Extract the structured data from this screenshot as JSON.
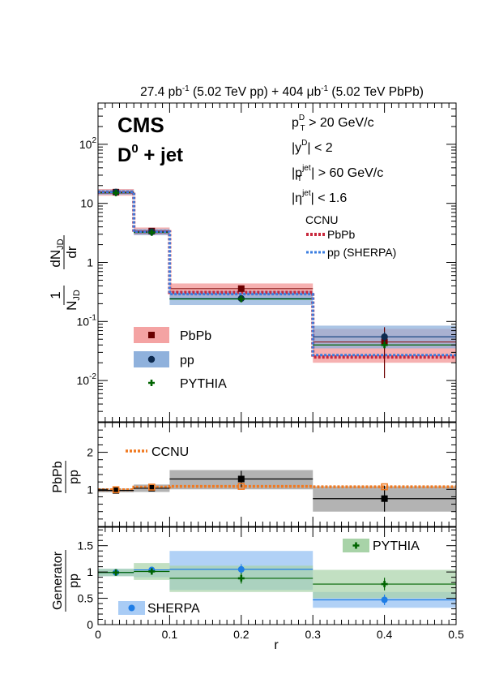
{
  "header": {
    "lumi_pp": "27.4 pb",
    "lumi_pp_exp": "-1",
    "lumi_pp_energy": " (5.02 TeV pp) + 404 ",
    "lumi_pbpb_unit": "μb",
    "lumi_pbpb_exp": "-1",
    "lumi_pbpb_energy": " (5.02 TeV PbPb)"
  },
  "experiment": "CMS",
  "process": {
    "base": "D",
    "sup": "0",
    "rest": " + jet"
  },
  "cuts": [
    {
      "pre": "p",
      "sub": "T",
      "sup": "D",
      "post": " > 20 GeV/c"
    },
    {
      "pre": "|y",
      "sub": "",
      "sup": "D",
      "post": "| < 2"
    },
    {
      "pre": "|p",
      "sub": "T",
      "sup": "jet",
      "post": "| > 60 GeV/c"
    },
    {
      "pre": "|η",
      "sub": "",
      "sup": "jet",
      "post": "| < 1.6"
    }
  ],
  "colors": {
    "pbpb_band": "#f4a3a3",
    "pbpb_marker": "#6b0000",
    "pp_band": "#8fb1dc",
    "pp_marker": "#0d2a4f",
    "pythia": "#006400",
    "pythia_band": "#a8d3a8",
    "sherpa": "#1e7de6",
    "sherpa_band": "#a9ccf5",
    "ccnu_pbpb": "#c8283c",
    "ccnu_pp": "#3a7de0",
    "ccnu_ratio": "#f07a22",
    "ratio_band": "#b3b3b3"
  },
  "chart_data": [
    {
      "type": "line",
      "panel": "distribution",
      "ylabel": "1/N_JD dN_JD/dr",
      "ylabel_parts": {
        "one": "1",
        "den": "N",
        "den_sub": "JD",
        "num": "dN",
        "num_sub": "JD",
        "dr": "dr"
      },
      "yscale": "log",
      "ylim": [
        0.002,
        500
      ],
      "xlim": [
        0,
        0.5
      ],
      "y_tick_labels": [
        {
          "base": "10",
          "exp": "-2",
          "value": 0.01
        },
        {
          "base": "10",
          "exp": "-1",
          "value": 0.1
        },
        {
          "base": "1",
          "exp": "",
          "value": 1
        },
        {
          "base": "10",
          "exp": "",
          "value": 10
        },
        {
          "base": "10",
          "exp": "2",
          "value": 100
        }
      ],
      "bin_edges": [
        0,
        0.05,
        0.1,
        0.3,
        0.5
      ],
      "bin_centers": [
        0.025,
        0.075,
        0.2,
        0.4
      ],
      "series": [
        {
          "name": "PbPb",
          "values": [
            15.5,
            3.4,
            0.36,
            0.045
          ],
          "stat_err": [
            0.6,
            0.2,
            0.03,
            0.035
          ],
          "syst_band": [
            [
              13.5,
              17.5
            ],
            [
              2.9,
              3.9
            ],
            [
              0.26,
              0.44
            ],
            [
              0.02,
              0.075
            ]
          ]
        },
        {
          "name": "pp",
          "values": [
            15.5,
            3.3,
            0.245,
            0.055
          ],
          "stat_err": [
            0.4,
            0.15,
            0.02,
            0.012
          ],
          "syst_band": [
            [
              14.0,
              17.0
            ],
            [
              2.9,
              3.7
            ],
            [
              0.19,
              0.33
            ],
            [
              0.035,
              0.085
            ]
          ]
        },
        {
          "name": "PYTHIA",
          "values": [
            15.0,
            3.2,
            0.24,
            0.04
          ],
          "stat_err": [
            0.5,
            0.15,
            0.03,
            0.01
          ]
        }
      ],
      "model_curves": {
        "title": "CCNU",
        "series": [
          {
            "name": "PbPb",
            "values": [
              15.5,
              3.3,
              0.31,
              0.025
            ]
          },
          {
            "name": "pp (SHERPA)",
            "values": [
              15.5,
              3.3,
              0.29,
              0.027
            ]
          }
        ]
      },
      "legend": [
        {
          "label": "PbPb",
          "type": "band-marker"
        },
        {
          "label": "pp",
          "type": "band-marker"
        },
        {
          "label": "PYTHIA",
          "type": "cross"
        }
      ]
    },
    {
      "type": "line",
      "panel": "ratio",
      "ylabel_num": "PbPb",
      "ylabel_den": "pp",
      "ylim": [
        0,
        2.8
      ],
      "xlim": [
        0,
        0.5
      ],
      "y_ticks": [
        "1",
        "2"
      ],
      "bin_edges": [
        0,
        0.05,
        0.1,
        0.3,
        0.5
      ],
      "series": [
        {
          "name": "PbPb/pp",
          "values": [
            0.97,
            1.03,
            1.28,
            0.75
          ],
          "stat_err": [
            0.04,
            0.06,
            0.22,
            0.35
          ],
          "syst_band": [
            [
              0.92,
              1.02
            ],
            [
              0.93,
              1.13
            ],
            [
              1.0,
              1.52
            ],
            [
              0.4,
              1.08
            ]
          ]
        }
      ],
      "model_curve": {
        "name": "CCNU",
        "values": [
          0.99,
          1.06,
          1.08,
          1.07
        ]
      }
    },
    {
      "type": "line",
      "panel": "generator",
      "ylabel_num": "Generator",
      "ylabel_den": "pp",
      "xlabel": "r",
      "ylim": [
        0,
        1.85
      ],
      "xlim": [
        0,
        0.5
      ],
      "y_ticks": [
        "0",
        "0.5",
        "1",
        "1.5"
      ],
      "x_ticks": [
        "0",
        "0.1",
        "0.2",
        "0.3",
        "0.4",
        "0.5"
      ],
      "bin_edges": [
        0,
        0.05,
        0.1,
        0.3,
        0.5
      ],
      "series": [
        {
          "name": "PYTHIA",
          "values": [
            0.99,
            1.01,
            0.88,
            0.77
          ],
          "stat_err": [
            0.03,
            0.05,
            0.1,
            0.12
          ],
          "syst_band": [
            [
              0.92,
              1.06
            ],
            [
              0.85,
              1.17
            ],
            [
              0.62,
              1.12
            ],
            [
              0.5,
              1.04
            ]
          ]
        },
        {
          "name": "SHERPA",
          "values": [
            0.99,
            1.04,
            1.05,
            0.47
          ],
          "stat_err": [
            0.03,
            0.05,
            0.1,
            0.1
          ],
          "syst_band": [
            [
              0.92,
              1.06
            ],
            [
              0.9,
              1.05
            ],
            [
              0.66,
              1.4
            ],
            [
              0.32,
              0.62
            ]
          ]
        }
      ]
    }
  ]
}
